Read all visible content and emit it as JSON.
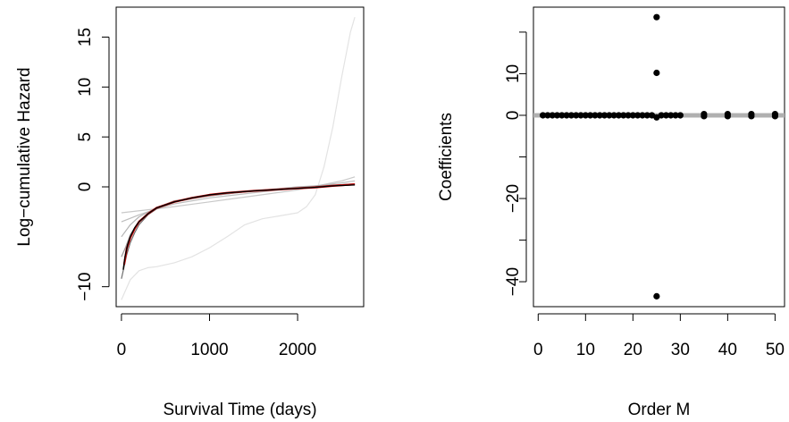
{
  "chart_data": [
    {
      "type": "line",
      "xlabel": "Survival Time (days)",
      "ylabel": "Log−cumulative Hazard",
      "xlim": [
        -60,
        2750
      ],
      "ylim": [
        -12,
        18
      ],
      "x_ticks": [
        0,
        1000,
        2000
      ],
      "x_tick_labels": [
        "0",
        "1000",
        "2000"
      ],
      "y_ticks": [
        -10,
        0,
        5,
        10,
        15
      ],
      "y_tick_labels": [
        "−10",
        "0",
        "5",
        "10",
        "15"
      ],
      "grid": false,
      "legend": "none",
      "series": [
        {
          "color": "#e3e3e3",
          "x": [
            0,
            100,
            200,
            300,
            400,
            600,
            800,
            1000,
            1200,
            1400,
            1600,
            1800,
            2000,
            2100,
            2200,
            2300,
            2400,
            2500,
            2600,
            2650
          ],
          "y": [
            -11.3,
            -9.3,
            -8.4,
            -8.1,
            -8.0,
            -7.6,
            -7.0,
            -6.1,
            -5.0,
            -3.8,
            -3.2,
            -2.9,
            -2.6,
            -2.0,
            -0.8,
            2.0,
            6.0,
            11.0,
            15.5,
            17.0
          ]
        },
        {
          "color": "#c9c9c9",
          "x": [
            0,
            500,
            1000,
            1500,
            2000,
            2500,
            2650
          ],
          "y": [
            -2.6,
            -2.1,
            -1.5,
            -0.9,
            -0.3,
            0.6,
            1.0
          ]
        },
        {
          "color": "#bdbdbd",
          "x": [
            0,
            200,
            400,
            600,
            1000,
            1500,
            2000,
            2500,
            2650
          ],
          "y": [
            -3.5,
            -2.8,
            -2.2,
            -1.7,
            -1.1,
            -0.6,
            -0.1,
            0.4,
            0.6
          ]
        },
        {
          "color": "#b3b3b3",
          "x": [
            0,
            100,
            200,
            400,
            600,
            1000,
            1500,
            2000,
            2650
          ],
          "y": [
            -5.0,
            -3.8,
            -3.0,
            -2.1,
            -1.5,
            -0.9,
            -0.4,
            0.0,
            0.3
          ]
        },
        {
          "color": "#9c9c9c",
          "x": [
            0,
            50,
            100,
            200,
            400,
            600,
            1000,
            1500,
            2000,
            2650
          ],
          "y": [
            -7.0,
            -6.0,
            -4.8,
            -3.4,
            -2.1,
            -1.4,
            -0.9,
            -0.4,
            -0.1,
            0.3
          ]
        },
        {
          "color": "#6e6e6e",
          "x": [
            0,
            30,
            60,
            100,
            150,
            200,
            300,
            400,
            600,
            800,
            1000,
            1500,
            2000,
            2650
          ],
          "y": [
            -9.2,
            -8.0,
            -6.8,
            -5.6,
            -4.6,
            -3.8,
            -2.8,
            -2.2,
            -1.5,
            -1.1,
            -0.8,
            -0.4,
            -0.1,
            0.3
          ]
        },
        {
          "color": "#e00000",
          "width": 2.2,
          "x": [
            30,
            60,
            100,
            150,
            200,
            300,
            400,
            600,
            800,
            1000,
            1200,
            1500,
            1800,
            2000,
            2200,
            2400,
            2650
          ],
          "y": [
            -7.8,
            -6.2,
            -5.1,
            -4.2,
            -3.5,
            -2.7,
            -2.1,
            -1.5,
            -1.1,
            -0.8,
            -0.6,
            -0.4,
            -0.25,
            -0.15,
            -0.05,
            0.1,
            0.25
          ]
        },
        {
          "color": "#000000",
          "width": 1.4,
          "x": [
            20,
            40,
            70,
            100,
            150,
            200,
            300,
            400,
            600,
            800,
            1000,
            1200,
            1500,
            1800,
            2000,
            2200,
            2400,
            2650
          ],
          "y": [
            -8.3,
            -7.0,
            -5.8,
            -5.0,
            -4.1,
            -3.5,
            -2.7,
            -2.1,
            -1.5,
            -1.1,
            -0.8,
            -0.6,
            -0.4,
            -0.25,
            -0.15,
            -0.05,
            0.1,
            0.2
          ]
        }
      ]
    },
    {
      "type": "scatter",
      "xlabel": "Order M",
      "ylabel": "Coefficients",
      "xlim": [
        -1,
        52
      ],
      "ylim": [
        -46,
        26
      ],
      "x_ticks": [
        0,
        10,
        20,
        30,
        40,
        50
      ],
      "x_tick_labels": [
        "0",
        "10",
        "20",
        "30",
        "40",
        "50"
      ],
      "y_ticks": [
        -40,
        -20,
        0,
        10
      ],
      "y_tick_labels": [
        "−40",
        "−20",
        "0",
        "10"
      ],
      "y_minor_ticks": [
        -30,
        -10,
        20
      ],
      "grid": false,
      "legend": "none",
      "hline": {
        "y": 0,
        "color": "#b0b0b0"
      },
      "points_x": [
        1,
        2,
        3,
        4,
        5,
        6,
        7,
        8,
        9,
        10,
        11,
        12,
        13,
        14,
        15,
        16,
        17,
        18,
        19,
        20,
        21,
        22,
        23,
        24,
        25,
        25,
        25,
        25,
        26,
        27,
        28,
        29,
        30,
        35,
        35,
        40,
        40,
        45,
        45,
        50,
        50
      ],
      "points_y": [
        0,
        0,
        0,
        0,
        0,
        0,
        0,
        0,
        0,
        0,
        0,
        0,
        0,
        0,
        0,
        0,
        0,
        0,
        0,
        0,
        0,
        0,
        0,
        0,
        23.6,
        10.2,
        -0.5,
        -43.5,
        0,
        0,
        0,
        0,
        0,
        0.3,
        -0.2,
        0.3,
        -0.2,
        0.3,
        -0.2,
        0.3,
        -0.2
      ]
    }
  ]
}
